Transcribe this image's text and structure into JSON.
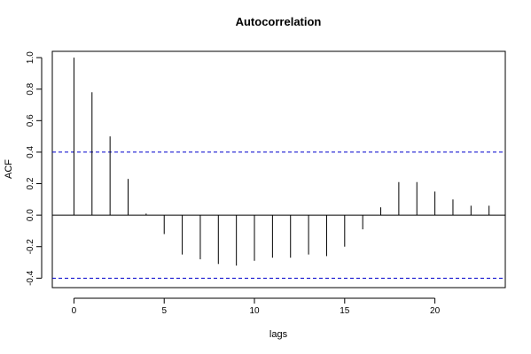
{
  "chart_data": {
    "type": "bar",
    "title": "Autocorrelation",
    "xlabel": "lags",
    "ylabel": "ACF",
    "xlim": [
      -1.2,
      23.9
    ],
    "ylim": [
      -0.46,
      1.04
    ],
    "x_ticks": [
      0,
      5,
      10,
      15,
      20
    ],
    "x_tick_labels": [
      "0",
      "5",
      "10",
      "15",
      "20"
    ],
    "y_ticks": [
      -0.4,
      -0.2,
      0.0,
      0.2,
      0.4,
      0.6,
      0.8,
      1.0
    ],
    "y_tick_labels": [
      "-0.4",
      "-0.2",
      "0.0",
      "0.2",
      "0.4",
      "0.6",
      "0.8",
      "1.0"
    ],
    "lags": [
      0,
      1,
      2,
      3,
      4,
      5,
      6,
      7,
      8,
      9,
      10,
      11,
      12,
      13,
      14,
      15,
      16,
      17,
      18,
      19,
      20,
      21,
      22,
      23
    ],
    "values": [
      1.0,
      0.78,
      0.5,
      0.23,
      0.01,
      -0.12,
      -0.25,
      -0.28,
      -0.31,
      -0.32,
      -0.29,
      -0.27,
      -0.27,
      -0.25,
      -0.26,
      -0.2,
      -0.09,
      0.05,
      0.21,
      0.21,
      0.15,
      0.1,
      0.06,
      0.06
    ],
    "confidence_bounds": [
      0.4,
      -0.4
    ],
    "zero_line": 0,
    "grid": false,
    "colors": {
      "bars": "#000000",
      "bounds": "#0000cc",
      "axes": "#000000"
    }
  }
}
